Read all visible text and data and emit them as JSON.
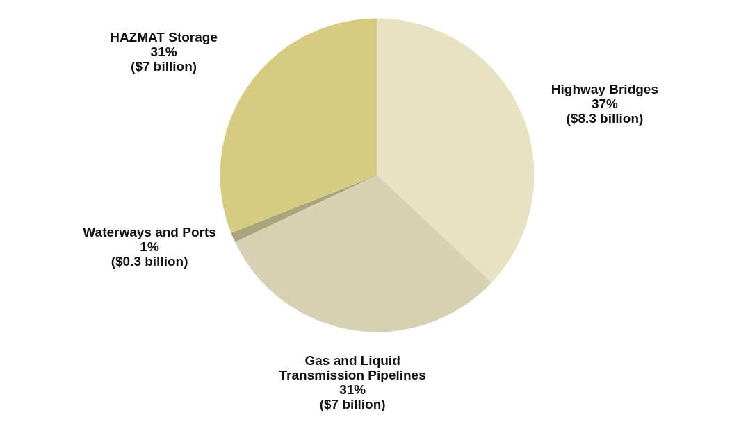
{
  "chart_data": {
    "type": "pie",
    "categories": [
      "Highway Bridges",
      "Gas and Liquid\nTransmission Pipelines",
      "Waterways and Ports",
      "HAZMAT Storage"
    ],
    "values": [
      37,
      31,
      1,
      31
    ],
    "value_labels": [
      "37%\n($8.3 billion)",
      "31%\n($7 billion)",
      "1%\n($0.3 billion)",
      "31%\n($7 billion)"
    ],
    "colors": [
      "#e8e2c2",
      "#d6d1b2",
      "#a9a47c",
      "#d6cb80"
    ]
  }
}
